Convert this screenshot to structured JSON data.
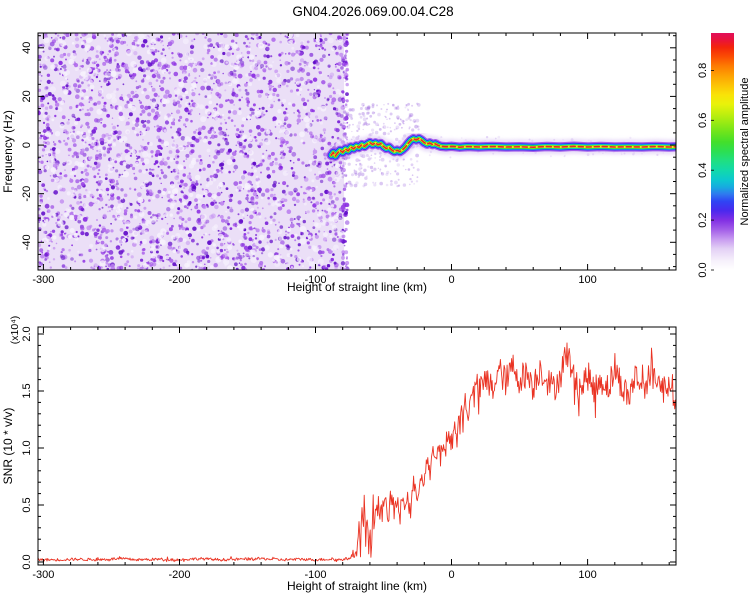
{
  "title": "GN04.2026.069.00.04.C28",
  "chart_data": [
    {
      "type": "heatmap",
      "title": "GN04.2026.069.00.04.C28",
      "xlabel": "Height of straight line (km)",
      "ylabel": "Frequency (Hz)",
      "xlim": [
        -304,
        165
      ],
      "ylim": [
        -51.4,
        46.1
      ],
      "x_ticks": [
        -300,
        -200,
        -100,
        0,
        100
      ],
      "x_minor_step": 20,
      "y_ticks": [
        -40,
        -20,
        0,
        20,
        40
      ],
      "y_minor_step": 5,
      "grid": false,
      "noise_field": {
        "description": "dense random purple speckle noise (low normalized amplitude ~0.05-0.3)",
        "x_range": [
          -304,
          -79
        ],
        "y_range": [
          -51.4,
          46.1
        ],
        "background": "#ebdff7",
        "palette": [
          "#5f0ac8",
          "#7519d6",
          "#8a2be2",
          "#9b45e6",
          "#ad64ec",
          "#c28df1"
        ],
        "light_speck_color": "#f7f2fd"
      },
      "ridge": {
        "description": "narrow high-amplitude spectral ridge near 0 Hz from -88 km to right edge",
        "peak_amplitude": 0.95,
        "layer_colors": [
          "#dcc8f4",
          "#9a48e8",
          "#3330ee",
          "#00c4f0",
          "#2ad62a",
          "#e6ee1c",
          "#e82828"
        ],
        "points": [
          [
            -88.5,
            -4.2
          ],
          [
            -87,
            -3
          ],
          [
            -85.5,
            -4.6
          ],
          [
            -84,
            -3.4
          ],
          [
            -82,
            -2.2
          ],
          [
            -80,
            -3
          ],
          [
            -78,
            -1.6
          ],
          [
            -76,
            -2.4
          ],
          [
            -74,
            -0.8
          ],
          [
            -72,
            -1.6
          ],
          [
            -70,
            -0.4
          ],
          [
            -68,
            -1
          ],
          [
            -66,
            0.2
          ],
          [
            -64,
            -0.6
          ],
          [
            -62,
            0.4
          ],
          [
            -60,
            1
          ],
          [
            -58,
            0.2
          ],
          [
            -56,
            0.9
          ],
          [
            -54,
            0.1
          ],
          [
            -52,
            0.6
          ],
          [
            -50,
            -0.6
          ],
          [
            -48,
            -1.4
          ],
          [
            -46,
            -0.9
          ],
          [
            -44,
            -2
          ],
          [
            -42,
            -2.7
          ],
          [
            -40,
            -2.1
          ],
          [
            -38,
            -2.7
          ],
          [
            -36,
            -1.9
          ],
          [
            -34,
            -0.9
          ],
          [
            -32,
            0.6
          ],
          [
            -30,
            1.9
          ],
          [
            -28,
            2.6
          ],
          [
            -26,
            2.1
          ],
          [
            -24,
            2.7
          ],
          [
            -22,
            2
          ],
          [
            -20,
            1
          ],
          [
            -18,
            0.4
          ],
          [
            -16,
            0.9
          ],
          [
            -14,
            0.2
          ],
          [
            -12,
            0.5
          ],
          [
            -10,
            -0.1
          ],
          [
            -8,
            -0.5
          ],
          [
            -4,
            -0.7
          ],
          [
            0,
            -0.5
          ],
          [
            6,
            -0.9
          ],
          [
            12,
            -0.6
          ],
          [
            20,
            -0.8
          ],
          [
            30,
            -0.6
          ],
          [
            40,
            -0.8
          ],
          [
            50,
            -0.7
          ],
          [
            60,
            -0.9
          ],
          [
            70,
            -0.6
          ],
          [
            80,
            -0.8
          ],
          [
            90,
            -0.5
          ],
          [
            100,
            -0.8
          ],
          [
            110,
            -0.6
          ],
          [
            120,
            -0.8
          ],
          [
            130,
            -0.7
          ],
          [
            140,
            -0.8
          ],
          [
            150,
            -0.6
          ],
          [
            160,
            -0.8
          ],
          [
            164.5,
            -0.7
          ]
        ]
      },
      "colorbar": {
        "label": "Normalized spectral amplitude",
        "ticks": [
          0.0,
          0.2,
          0.4,
          0.6,
          0.8
        ],
        "max_value": 0.95,
        "stops": [
          [
            0,
            "#ffffff"
          ],
          [
            0.04,
            "#f6f0fb"
          ],
          [
            0.09,
            "#e3d0f5"
          ],
          [
            0.13,
            "#c79af0"
          ],
          [
            0.17,
            "#a35fe8"
          ],
          [
            0.21,
            "#8230e4"
          ],
          [
            0.25,
            "#4b28ee"
          ],
          [
            0.29,
            "#2f45f4"
          ],
          [
            0.32,
            "#2f79ef"
          ],
          [
            0.35,
            "#17abe0"
          ],
          [
            0.38,
            "#0cc8cf"
          ],
          [
            0.42,
            "#12d9ab"
          ],
          [
            0.46,
            "#1fdf82"
          ],
          [
            0.5,
            "#2cdf52"
          ],
          [
            0.54,
            "#43df2b"
          ],
          [
            0.58,
            "#6ce41c"
          ],
          [
            0.62,
            "#97ea14"
          ],
          [
            0.66,
            "#c2ef0e"
          ],
          [
            0.7,
            "#e9f20a"
          ],
          [
            0.74,
            "#f9e208"
          ],
          [
            0.78,
            "#fcc306"
          ],
          [
            0.82,
            "#fda203"
          ],
          [
            0.86,
            "#fd7c02"
          ],
          [
            0.9,
            "#fb4d03"
          ],
          [
            0.94,
            "#f3250b"
          ],
          [
            0.97,
            "#e9133a"
          ],
          [
            1,
            "#e10f5a"
          ]
        ]
      }
    },
    {
      "type": "line",
      "xlabel": "Height of straight line (km)",
      "ylabel": "SNR (10 * v/v)",
      "scale_label": "(x10⁴)",
      "line_color": "#ea3323",
      "xlim": [
        -304,
        165
      ],
      "ylim": [
        -0.026,
        2.061
      ],
      "x_ticks": [
        -300,
        -200,
        -100,
        0,
        100
      ],
      "x_minor_step": 20,
      "y_ticks": [
        0.0,
        0.5,
        1.0,
        1.5,
        2.0
      ],
      "y_minor_step": 0.1,
      "grid": false,
      "series": [
        {
          "name": "SNR",
          "anchors": [
            [
              -304,
              0.02
            ],
            [
              -290,
              0.02
            ],
            [
              -275,
              0.025
            ],
            [
              -260,
              0.02
            ],
            [
              -245,
              0.03
            ],
            [
              -230,
              0.02
            ],
            [
              -215,
              0.025
            ],
            [
              -200,
              0.02
            ],
            [
              -185,
              0.03
            ],
            [
              -170,
              0.02
            ],
            [
              -155,
              0.025
            ],
            [
              -140,
              0.03
            ],
            [
              -125,
              0.02
            ],
            [
              -110,
              0.025
            ],
            [
              -100,
              0.02
            ],
            [
              -90,
              0.025
            ],
            [
              -82,
              0.02
            ],
            [
              -76,
              0.03
            ],
            [
              -72,
              0.05
            ],
            [
              -70,
              0.18
            ],
            [
              -69,
              0.08
            ],
            [
              -68,
              0.35
            ],
            [
              -67,
              0.12
            ],
            [
              -66,
              0.52
            ],
            [
              -65,
              0.22
            ],
            [
              -64,
              0.6
            ],
            [
              -63,
              0.12
            ],
            [
              -62,
              0.42
            ],
            [
              -61,
              0.06
            ],
            [
              -60,
              0.32
            ],
            [
              -59,
              0.08
            ],
            [
              -58,
              0.48
            ],
            [
              -57,
              0.25
            ],
            [
              -56,
              0.55
            ],
            [
              -55,
              0.45
            ],
            [
              -54,
              0.5
            ],
            [
              -52,
              0.46
            ],
            [
              -50,
              0.44
            ],
            [
              -48,
              0.52
            ],
            [
              -46,
              0.38
            ],
            [
              -44,
              0.58
            ],
            [
              -42,
              0.44
            ],
            [
              -40,
              0.55
            ],
            [
              -38,
              0.36
            ],
            [
              -36,
              0.62
            ],
            [
              -34,
              0.48
            ],
            [
              -32,
              0.58
            ],
            [
              -30,
              0.44
            ],
            [
              -28,
              0.7
            ],
            [
              -26,
              0.54
            ],
            [
              -24,
              0.66
            ],
            [
              -22,
              0.82
            ],
            [
              -20,
              0.68
            ],
            [
              -18,
              0.9
            ],
            [
              -16,
              0.74
            ],
            [
              -14,
              0.98
            ],
            [
              -12,
              0.84
            ],
            [
              -10,
              1.02
            ],
            [
              -8,
              0.9
            ],
            [
              -6,
              1.08
            ],
            [
              -4,
              0.95
            ],
            [
              -2,
              1.12
            ],
            [
              0,
              1.02
            ],
            [
              2,
              1.22
            ],
            [
              4,
              1.08
            ],
            [
              6,
              1.32
            ],
            [
              8,
              1.18
            ],
            [
              10,
              1.42
            ],
            [
              12,
              1.28
            ],
            [
              14,
              1.52
            ],
            [
              16,
              1.38
            ],
            [
              18,
              1.58
            ],
            [
              20,
              1.48
            ],
            [
              25,
              1.6
            ],
            [
              30,
              1.52
            ],
            [
              35,
              1.68
            ],
            [
              40,
              1.58
            ],
            [
              45,
              1.72
            ],
            [
              50,
              1.6
            ],
            [
              55,
              1.66
            ],
            [
              60,
              1.54
            ],
            [
              65,
              1.7
            ],
            [
              70,
              1.6
            ],
            [
              75,
              1.52
            ],
            [
              80,
              1.64
            ],
            [
              85,
              1.85
            ],
            [
              90,
              1.6
            ],
            [
              95,
              1.52
            ],
            [
              100,
              1.64
            ],
            [
              105,
              1.5
            ],
            [
              110,
              1.6
            ],
            [
              115,
              1.54
            ],
            [
              120,
              1.68
            ],
            [
              125,
              1.56
            ],
            [
              130,
              1.44
            ],
            [
              135,
              1.64
            ],
            [
              140,
              1.54
            ],
            [
              145,
              1.6
            ],
            [
              150,
              1.66
            ],
            [
              155,
              1.5
            ],
            [
              160,
              1.6
            ],
            [
              164.5,
              1.45
            ]
          ],
          "noise_profile": [
            [
              -304,
              0.012
            ],
            [
              -73,
              0.012
            ],
            [
              -70,
              0.1
            ],
            [
              -46,
              0.1
            ],
            [
              -20,
              0.08
            ],
            [
              10,
              0.1
            ],
            [
              25,
              0.13
            ],
            [
              164.5,
              0.13
            ]
          ]
        }
      ]
    }
  ]
}
